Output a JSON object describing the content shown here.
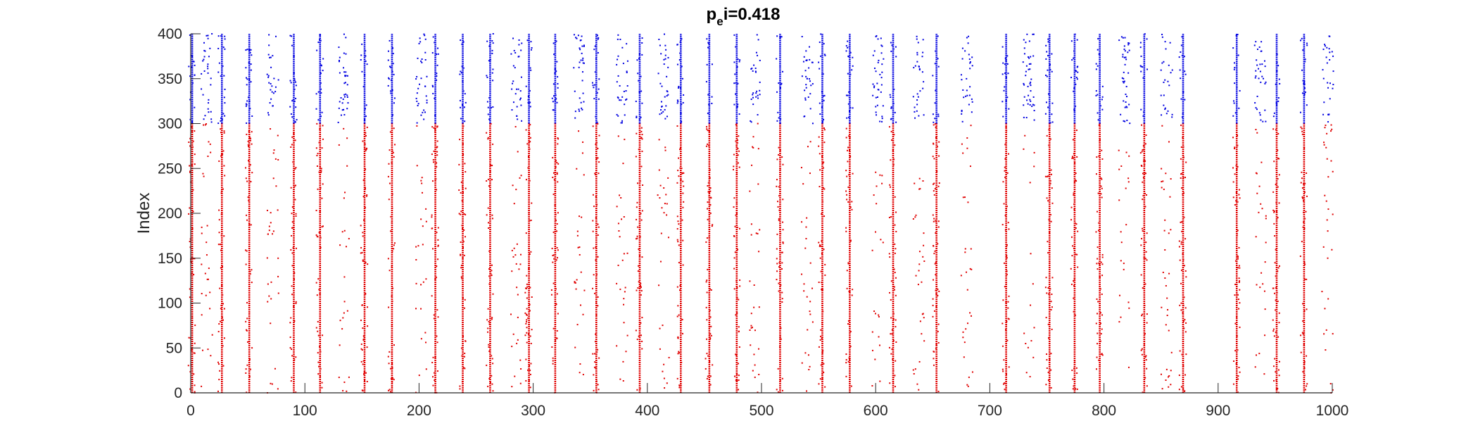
{
  "chart_data": {
    "type": "scatter",
    "title": {
      "main": "p",
      "sub": "e",
      "rest": "i=0.418"
    },
    "xlabel": "",
    "ylabel": "Index",
    "xlim": [
      0,
      1000
    ],
    "ylim": [
      0,
      400
    ],
    "xticks": [
      0,
      100,
      200,
      300,
      400,
      500,
      600,
      700,
      800,
      900,
      1000
    ],
    "yticks": [
      0,
      50,
      100,
      150,
      200,
      250,
      300,
      350,
      400
    ],
    "grid": false,
    "legend": "none",
    "group_split_index": 300,
    "colors": {
      "lower_group": "#e00000",
      "upper_group": "#0000e0",
      "axes": "#262626"
    },
    "burst_times": [
      1,
      27,
      51,
      90,
      113,
      152,
      176,
      214,
      238,
      262,
      296,
      319,
      355,
      393,
      429,
      454,
      478,
      516,
      553,
      577,
      615,
      653,
      714,
      752,
      774,
      796,
      835,
      869,
      916,
      951,
      975
    ],
    "weak_burst_times": [
      14,
      72,
      134,
      202,
      285,
      340,
      378,
      414,
      494,
      540,
      602,
      638,
      680,
      734,
      818,
      855,
      937,
      996
    ]
  }
}
